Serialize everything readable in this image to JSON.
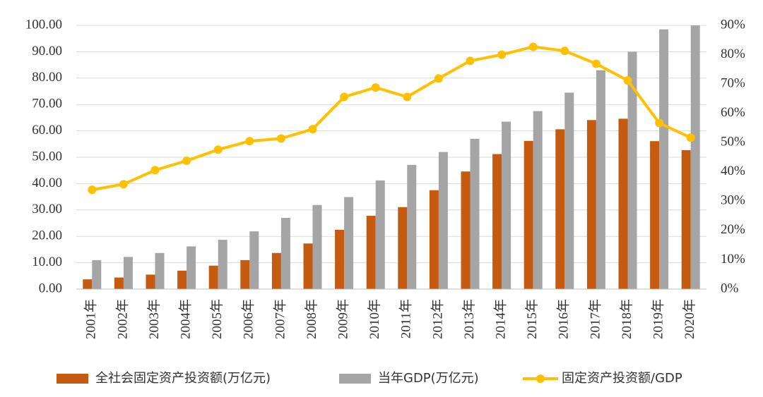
{
  "chart_data": {
    "type": "bar-line",
    "categories": [
      "2001年",
      "2002年",
      "2003年",
      "2004年",
      "2005年",
      "2006年",
      "2007年",
      "2008年",
      "2009年",
      "2010年",
      "2011年",
      "2012年",
      "2013年",
      "2014年",
      "2015年",
      "2016年",
      "2017年",
      "2018年",
      "2019年",
      "2020年"
    ],
    "series": [
      {
        "name": "全社会固定资产投资额(万亿元)",
        "type": "bar",
        "color": "#c55a11",
        "values": [
          3.7,
          4.4,
          5.5,
          7.0,
          8.9,
          11.0,
          13.7,
          17.3,
          22.5,
          27.8,
          31.1,
          37.5,
          44.6,
          51.2,
          56.2,
          60.6,
          64.1,
          64.6,
          56.1,
          52.7
        ]
      },
      {
        "name": "当年GDP(万亿元)",
        "type": "bar",
        "color": "#a5a5a5",
        "values": [
          11.0,
          12.2,
          13.7,
          16.2,
          18.7,
          21.9,
          27.0,
          31.9,
          34.9,
          41.2,
          47.1,
          52.0,
          57.0,
          63.5,
          67.5,
          74.5,
          83.0,
          90.0,
          98.5,
          100
        ]
      },
      {
        "name": "固定资产投资额/GDP",
        "type": "line",
        "axis": "y2",
        "color": "#ffc000",
        "values": [
          33.9,
          35.8,
          40.6,
          43.8,
          47.6,
          50.5,
          51.4,
          54.6,
          65.6,
          68.8,
          65.6,
          71.9,
          77.9,
          80.0,
          82.7,
          81.3,
          76.9,
          71.2,
          56.7,
          51.7
        ]
      }
    ],
    "ylim": [
      0,
      100
    ],
    "yticks": [
      {
        "value": 0,
        "label": "0.00"
      },
      {
        "value": 10,
        "label": "10.00"
      },
      {
        "value": 20,
        "label": "20.00"
      },
      {
        "value": 30,
        "label": "30.00"
      },
      {
        "value": 40,
        "label": "40.00"
      },
      {
        "value": 50,
        "label": "50.00"
      },
      {
        "value": 60,
        "label": "60.00"
      },
      {
        "value": 70,
        "label": "70.00"
      },
      {
        "value": 80,
        "label": "80.00"
      },
      {
        "value": 90,
        "label": "90.00"
      },
      {
        "value": 100,
        "label": "100.00"
      }
    ],
    "y2lim": [
      0,
      90
    ],
    "y2ticks": [
      {
        "value": 0,
        "label": "0%"
      },
      {
        "value": 10,
        "label": "10%"
      },
      {
        "value": 20,
        "label": "20%"
      },
      {
        "value": 30,
        "label": "30%"
      },
      {
        "value": 40,
        "label": "40%"
      },
      {
        "value": 50,
        "label": "50%"
      },
      {
        "value": 60,
        "label": "60%"
      },
      {
        "value": 70,
        "label": "70%"
      },
      {
        "value": 80,
        "label": "80%"
      },
      {
        "value": 90,
        "label": "90%"
      }
    ],
    "grid": true,
    "legend": "bottom"
  }
}
